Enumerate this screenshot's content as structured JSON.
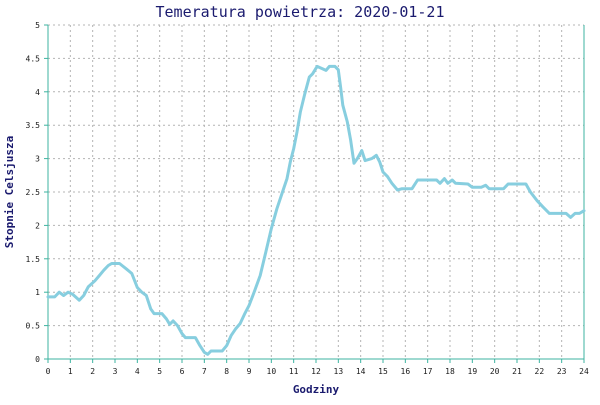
{
  "chart_data": {
    "type": "line",
    "title": "Temeratura powietrza: 2020-01-21",
    "xlabel": "Godziny",
    "ylabel": "Stopnie Celsjusza",
    "xlim": [
      0,
      24
    ],
    "ylim": [
      0,
      5
    ],
    "x_ticks": [
      "0",
      "1",
      "2",
      "3",
      "4",
      "5",
      "6",
      "7",
      "8",
      "9",
      "10",
      "11",
      "12",
      "13",
      "14",
      "15",
      "16",
      "17",
      "18",
      "19",
      "20",
      "21",
      "22",
      "23",
      "24"
    ],
    "y_ticks": [
      "0",
      "0.5",
      "1",
      "1.5",
      "2",
      "2.5",
      "3",
      "3.5",
      "4",
      "4.5",
      "5"
    ],
    "grid": true,
    "line_color": "#87cedf",
    "axis_color": "#3cb3a0",
    "grid_color": "#b4b4b4",
    "series": [
      {
        "values": [
          [
            0,
            0.93
          ],
          [
            0.3,
            0.93
          ],
          [
            0.5,
            1.0
          ],
          [
            0.7,
            0.95
          ],
          [
            0.9,
            1.0
          ],
          [
            1.1,
            0.97
          ],
          [
            1.4,
            0.88
          ],
          [
            1.6,
            0.95
          ],
          [
            1.8,
            1.08
          ],
          [
            2.1,
            1.17
          ],
          [
            2.3,
            1.25
          ],
          [
            2.5,
            1.33
          ],
          [
            2.7,
            1.4
          ],
          [
            2.85,
            1.43
          ],
          [
            3.2,
            1.43
          ],
          [
            3.5,
            1.35
          ],
          [
            3.75,
            1.28
          ],
          [
            4.0,
            1.07
          ],
          [
            4.2,
            1.0
          ],
          [
            4.4,
            0.95
          ],
          [
            4.6,
            0.75
          ],
          [
            4.75,
            0.68
          ],
          [
            5.1,
            0.68
          ],
          [
            5.3,
            0.6
          ],
          [
            5.45,
            0.52
          ],
          [
            5.6,
            0.57
          ],
          [
            5.8,
            0.5
          ],
          [
            6.0,
            0.38
          ],
          [
            6.15,
            0.32
          ],
          [
            6.6,
            0.32
          ],
          [
            6.8,
            0.2
          ],
          [
            7.0,
            0.1
          ],
          [
            7.15,
            0.07
          ],
          [
            7.3,
            0.12
          ],
          [
            7.8,
            0.12
          ],
          [
            8.0,
            0.2
          ],
          [
            8.2,
            0.35
          ],
          [
            8.4,
            0.45
          ],
          [
            8.6,
            0.53
          ],
          [
            8.8,
            0.67
          ],
          [
            9.0,
            0.8
          ],
          [
            9.25,
            1.02
          ],
          [
            9.5,
            1.25
          ],
          [
            9.75,
            1.6
          ],
          [
            10.0,
            1.95
          ],
          [
            10.25,
            2.25
          ],
          [
            10.5,
            2.5
          ],
          [
            10.7,
            2.7
          ],
          [
            10.85,
            2.95
          ],
          [
            11.0,
            3.15
          ],
          [
            11.15,
            3.4
          ],
          [
            11.3,
            3.7
          ],
          [
            11.5,
            3.97
          ],
          [
            11.7,
            4.22
          ],
          [
            11.85,
            4.27
          ],
          [
            12.05,
            4.38
          ],
          [
            12.25,
            4.35
          ],
          [
            12.45,
            4.32
          ],
          [
            12.6,
            4.38
          ],
          [
            12.85,
            4.38
          ],
          [
            13.0,
            4.33
          ],
          [
            13.1,
            4.07
          ],
          [
            13.2,
            3.8
          ],
          [
            13.4,
            3.55
          ],
          [
            13.55,
            3.28
          ],
          [
            13.7,
            2.93
          ],
          [
            13.85,
            3.0
          ],
          [
            14.05,
            3.12
          ],
          [
            14.2,
            2.97
          ],
          [
            14.5,
            3.0
          ],
          [
            14.7,
            3.05
          ],
          [
            14.85,
            2.95
          ],
          [
            15.0,
            2.8
          ],
          [
            15.2,
            2.73
          ],
          [
            15.4,
            2.63
          ],
          [
            15.65,
            2.53
          ],
          [
            15.85,
            2.55
          ],
          [
            16.3,
            2.55
          ],
          [
            16.55,
            2.68
          ],
          [
            17.4,
            2.68
          ],
          [
            17.55,
            2.63
          ],
          [
            17.75,
            2.7
          ],
          [
            17.9,
            2.63
          ],
          [
            18.1,
            2.68
          ],
          [
            18.25,
            2.63
          ],
          [
            18.8,
            2.62
          ],
          [
            19.0,
            2.57
          ],
          [
            19.4,
            2.57
          ],
          [
            19.6,
            2.6
          ],
          [
            19.75,
            2.55
          ],
          [
            20.4,
            2.55
          ],
          [
            20.6,
            2.62
          ],
          [
            21.4,
            2.62
          ],
          [
            21.6,
            2.5
          ],
          [
            21.9,
            2.37
          ],
          [
            22.15,
            2.28
          ],
          [
            22.45,
            2.18
          ],
          [
            23.2,
            2.18
          ],
          [
            23.4,
            2.12
          ],
          [
            23.6,
            2.18
          ],
          [
            23.8,
            2.18
          ],
          [
            24.0,
            2.22
          ]
        ]
      }
    ]
  }
}
